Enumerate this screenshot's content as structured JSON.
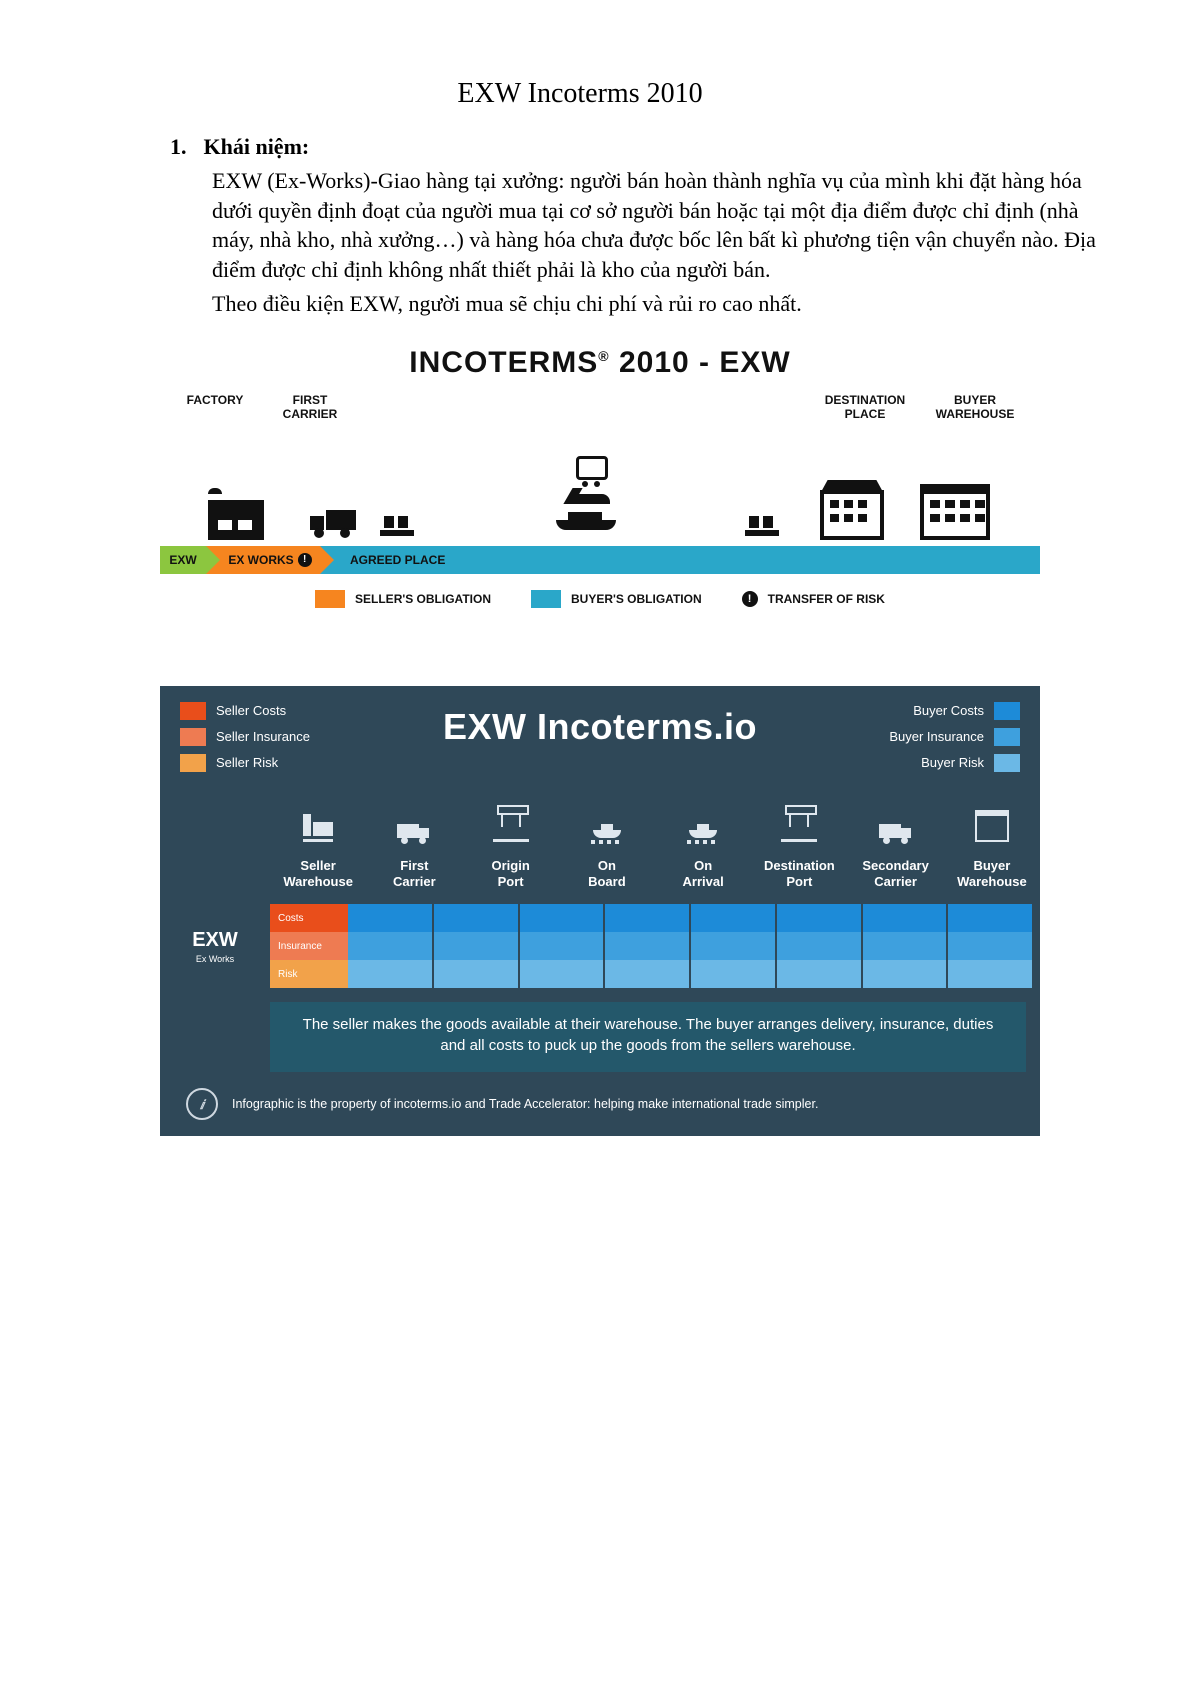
{
  "doc": {
    "title": "EXW Incoterms 2010",
    "section_number": "1.",
    "section_heading": "Khái niệm:",
    "para1": "EXW (Ex-Works)-Giao hàng tại xưởng: người bán hoàn thành nghĩa vụ của mình khi đặt hàng hóa dưới quyền định đoạt của người mua tại cơ sở người bán hoặc tại một địa điểm được chỉ định (nhà máy, nhà kho, nhà xưởng…) và hàng hóa chưa được bốc lên bất kì phương tiện vận chuyển nào. Địa điểm được chỉ định không nhất thiết phải là kho của người bán.",
    "para2": "Theo điều kiện EXW, người mua sẽ chịu chi phí và rủi ro cao nhất."
  },
  "ig1": {
    "title_prefix": "INCOTERMS",
    "title_reg": "®",
    "title_suffix": " 2010 - EXW",
    "labels": {
      "factory": "FACTORY",
      "first_carrier": "FIRST\nCARRIER",
      "destination_place": "DESTINATION\nPLACE",
      "buyer_warehouse": "BUYER\nWAREHOUSE"
    },
    "bar": {
      "code": "EXW",
      "term": "EX WORKS",
      "agreed": "AGREED PLACE"
    },
    "legend": {
      "seller": "SELLER'S OBLIGATION",
      "buyer": "BUYER'S OBLIGATION",
      "risk": "TRANSFER OF RISK"
    },
    "colors": {
      "seller_green": "#8cc63f",
      "seller_orange": "#f6851f",
      "buyer_blue": "#2aa7c9",
      "text": "#111111"
    }
  },
  "ig2": {
    "bg": "#2f4858",
    "title": "EXW Incoterms.io",
    "legend_left": [
      {
        "label": "Seller Costs",
        "color": "#e94e1b"
      },
      {
        "label": "Seller Insurance",
        "color": "#ee7b52"
      },
      {
        "label": "Seller Risk",
        "color": "#f2a24a"
      }
    ],
    "legend_right": [
      {
        "label": "Buyer Costs",
        "color": "#1d8bd8"
      },
      {
        "label": "Buyer Insurance",
        "color": "#3ea0de"
      },
      {
        "label": "Buyer Risk",
        "color": "#6bb8e6"
      }
    ],
    "columns": [
      "Seller\nWarehouse",
      "First\nCarrier",
      "Origin\nPort",
      "On\nBoard",
      "On\nArrival",
      "Destination\nPort",
      "Secondary\nCarrier",
      "Buyer\nWarehouse"
    ],
    "term": {
      "code": "EXW",
      "name": "Ex Works",
      "rows": [
        {
          "label": "Costs",
          "seller_span": 1,
          "seller_color": "#e94e1b",
          "buyer_color": "#1d8bd8"
        },
        {
          "label": "Insurance",
          "seller_span": 1,
          "seller_color": "#ee7b52",
          "buyer_color": "#3ea0de"
        },
        {
          "label": "Risk",
          "seller_span": 1,
          "seller_color": "#f2a24a",
          "buyer_color": "#6bb8e6"
        }
      ]
    },
    "desc_bg": "#24586b",
    "desc": "The seller makes the goods available at their warehouse. The buyer arranges delivery, insurance, duties and all costs to puck up the goods from the sellers warehouse.",
    "footer": "Infographic is the property of incoterms.io and Trade Accelerator: helping make international trade simpler."
  }
}
